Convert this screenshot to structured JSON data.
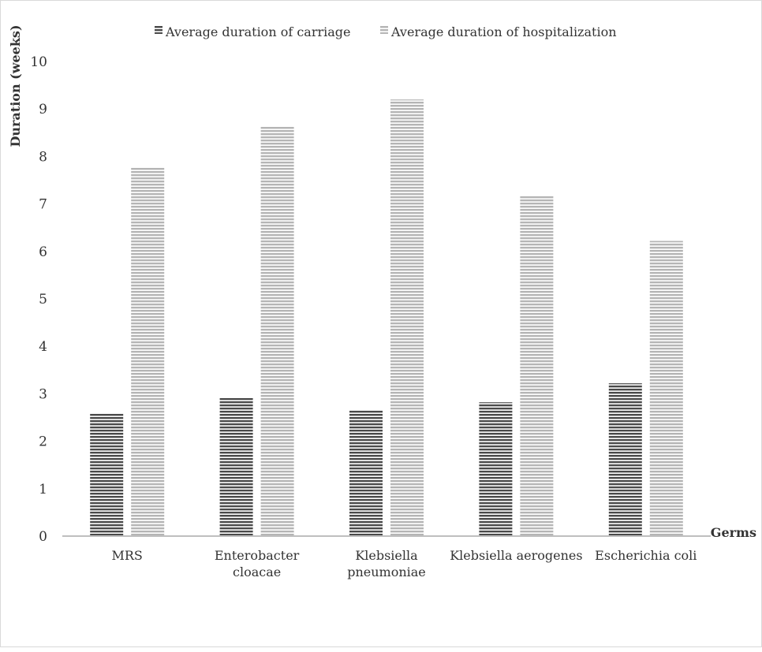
{
  "chart_data": {
    "type": "bar",
    "categories": [
      [
        "MRS"
      ],
      [
        "Enterobacter",
        "cloacae"
      ],
      [
        "Klebsiella",
        "pneumoniae"
      ],
      [
        "Klebsiella aerogenes"
      ],
      [
        "Escherichia coli"
      ]
    ],
    "series": [
      {
        "name": "Average duration of carriage",
        "values": [
          2.6,
          2.92,
          2.65,
          2.82,
          3.22
        ],
        "color": "#555555"
      },
      {
        "name": "Average duration of hospitalization",
        "values": [
          7.78,
          8.63,
          9.2,
          7.18,
          6.22
        ],
        "color": "#b3b3b3"
      }
    ],
    "xlabel": "Germs",
    "ylabel": "Duration (weeks)",
    "ylim": [
      0,
      10
    ],
    "yticks": [
      "0",
      "1",
      "2",
      "3",
      "4",
      "5",
      "6",
      "7",
      "8",
      "9",
      "10"
    ],
    "grid": false,
    "legend": "top"
  }
}
